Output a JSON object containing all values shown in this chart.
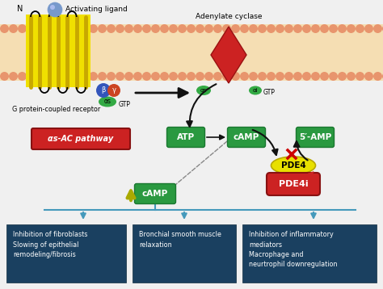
{
  "bg_color": "#f0f0f0",
  "membrane_fill": "#f5deb3",
  "membrane_circle_color": "#e8956d",
  "receptor_color": "#f0e000",
  "receptor_stripe": "#c8a800",
  "adenylate_color": "#cc2222",
  "green_box_color": "#2a9940",
  "green_box_edge": "#1a7730",
  "green_box_text": "#ffffff",
  "red_box_color": "#cc2222",
  "red_box_edge": "#881111",
  "red_box_text": "#ffffff",
  "blue_box_color": "#1a4060",
  "blue_box_text": "#ffffff",
  "yellow_oval_color": "#e8e000",
  "yellow_oval_edge": "#b8a800",
  "pde4i_color": "#cc2222",
  "pde4i_edge": "#881111",
  "black_arrow": "#111111",
  "blue_arrow_color": "#4499bb",
  "ligand_color": "#7799cc",
  "ligand_hi": "#aabbee",
  "alpha_color": "#33aa44",
  "beta_color": "#3355bb",
  "gamma_color": "#cc4422",
  "dashed_arrow": "#888888",
  "yellow_arrow": "#aaaa00",
  "red_x_color": "#cc0000",
  "red_dashed": "#cc2222",
  "labels": {
    "activating_ligand": "Activating ligand",
    "adenylate_cyclase": "Adenylate cyclase",
    "g_protein": "G protein-coupled receptor",
    "gtp1": "GTP",
    "gtp2": "GTP",
    "alpha_s_pathway": "αs-AC pathway",
    "atp": "ATP",
    "camp1": "cAMP",
    "five_amp": "5′-AMP",
    "pde4": "PDE4",
    "pde4i": "PDE4i",
    "camp2": "cAMP",
    "N": "N",
    "alpha_s1": "αs",
    "alpha_s2": "αs",
    "alpha_i": "αi",
    "beta": "β",
    "gamma": "γ",
    "box1": "Inhibition of fibroblasts\nSlowing of epithelial\nremodeling/fibrosis",
    "box2": "Bronchial smooth muscle\nrelaxation",
    "box3": "Inhibition of inflammatory\nmediators\nMacrophage and\nneurtrophil downregulation"
  }
}
